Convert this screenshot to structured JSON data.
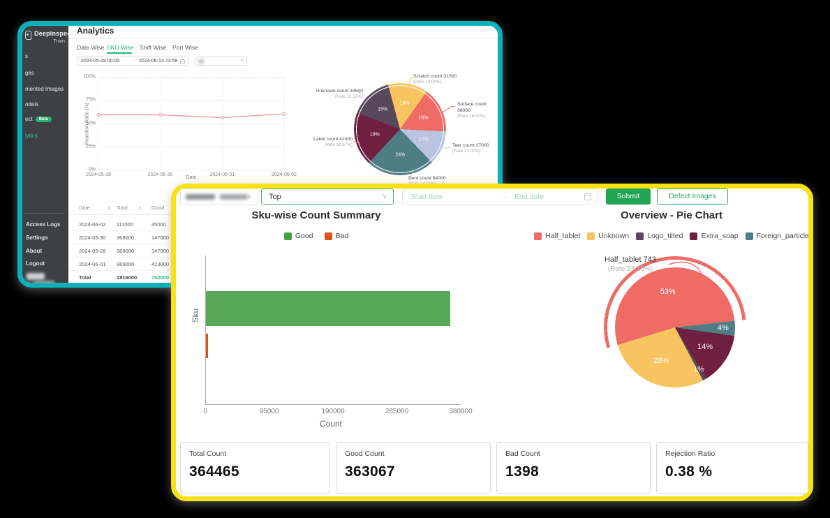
{
  "back_window": {
    "sidebar": {
      "logo_title": "DeepInspect",
      "logo_subtitle": "Train",
      "items": [
        {
          "label": "s"
        },
        {
          "label": "ges"
        },
        {
          "label": "mented Images"
        },
        {
          "label": "odels"
        },
        {
          "label": "ect",
          "badge": "Beta"
        },
        {
          "label": "lytics"
        }
      ],
      "footer_items": [
        "Access Logs",
        "Settings",
        "About",
        "Logout"
      ]
    },
    "title": "Analytics",
    "tabs": [
      {
        "label": "Date Wise"
      },
      {
        "label": "SKU Wise"
      },
      {
        "label": "Shift Wise"
      },
      {
        "label": "Port Wise"
      }
    ],
    "filters": {
      "date_start": "2024-05-28 00:00",
      "date_separator": "--",
      "date_end": "2024-06-13 23:59"
    },
    "table": {
      "columns": [
        "Date",
        "Total",
        "Good"
      ],
      "rows": [
        [
          "2024-06-02",
          "111000",
          "45000"
        ],
        [
          "2024-05-30",
          "368000",
          "147000"
        ],
        [
          "2024-05-28",
          "368000",
          "147000"
        ],
        [
          "2024-06-01",
          "969000",
          "423000"
        ]
      ],
      "total_row": [
        "Total",
        "1816000",
        "762000"
      ]
    }
  },
  "front_window": {
    "toolbar": {
      "sku_select_value": "Top",
      "start_date_placeholder": "Start date",
      "date_separator": "→",
      "end_date_placeholder": "End date",
      "submit_label": "Submit",
      "defect_images_label": "Defect Images"
    },
    "cards": [
      {
        "label": "Total Count",
        "value": "364465"
      },
      {
        "label": "Good Count",
        "value": "363067"
      },
      {
        "label": "Bad Count",
        "value": "1398"
      },
      {
        "label": "Rejection Ratio",
        "value": "0.38 %"
      }
    ]
  },
  "chart_data": [
    {
      "type": "line",
      "x": [
        "2024-05-28",
        "2024-05-30",
        "2024-06-01",
        "2024-06-02"
      ],
      "series": [
        {
          "name": "Rejection Ratio",
          "values": [
            59,
            59,
            56,
            60
          ]
        }
      ],
      "xlabel": "Date",
      "ylabel": "Rejection Ratio (%)",
      "ylim": [
        0,
        100
      ],
      "ytick_labels": [
        "0%",
        "25%",
        "50%",
        "75%",
        "100%"
      ],
      "line_color": "#f08d8d",
      "grid": true
    },
    {
      "type": "pie",
      "start_angle": -15,
      "slices": [
        {
          "name": "Scratch",
          "count": 31500,
          "pct": 14,
          "color": "#f8c45f",
          "pct_label": "14%",
          "label": "Scratch count 31500",
          "rate_label": "(Rate 14.00%)"
        },
        {
          "name": "Surface",
          "count": 36000,
          "pct": 16,
          "color": "#ee6b66",
          "pct_label": "16%",
          "label": "Surface count 36000",
          "rate_label": "(Rate 16.00%)"
        },
        {
          "name": "Teer",
          "count": 27000,
          "pct": 12,
          "color": "#b9c4e0",
          "pct_label": "12%",
          "label": "Teer count 27000",
          "rate_label": "(Rate 12.00%)"
        },
        {
          "name": "Dent",
          "count": 54000,
          "pct": 24,
          "color": "#4e7d85",
          "pct_label": "24%",
          "label": "Dent count 54000",
          "rate_label": "(Rate 24.00%)"
        },
        {
          "name": "Label",
          "count": 42000,
          "pct": 19,
          "color": "#6f1f40",
          "pct_label": "19%",
          "label": "Label count 42000",
          "rate_label": "(Rate 18.67%)"
        },
        {
          "name": "Unknown",
          "count": 34500,
          "pct": 15,
          "color": "#57485a",
          "pct_label": "15%",
          "label": "Unknown count 34500",
          "rate_label": "(Rate 15.33%)"
        }
      ]
    },
    {
      "type": "bar",
      "title": "Sku-wise Count Summary",
      "orientation": "horizontal",
      "categories": [
        "Sku"
      ],
      "series": [
        {
          "name": "Good",
          "values": [
            363067
          ],
          "color": "#57a857"
        },
        {
          "name": "Bad",
          "values": [
            1398
          ],
          "color": "#e2521d"
        }
      ],
      "legend": [
        {
          "label": "Good",
          "color": "#43a047"
        },
        {
          "label": "Bad",
          "color": "#e2521d"
        }
      ],
      "xlabel": "Count",
      "ylabel": "Sku",
      "xlim": [
        0,
        380000
      ],
      "xtick_labels": [
        "0",
        "95000",
        "190000",
        "285000",
        "380000"
      ]
    },
    {
      "type": "pie",
      "title": "Overview - Pie Chart",
      "start_angle": -107,
      "slices": [
        {
          "name": "Half_tablet",
          "pct": 53,
          "color": "#ee6b66",
          "pct_label": "53%",
          "count": 743,
          "callout_label": "Half_tablet 743",
          "callout_rate": "(Rate 53.15%)",
          "selected": true
        },
        {
          "name": "Foreign_particle",
          "pct": 4,
          "color": "#4e7d85",
          "pct_label": "4%"
        },
        {
          "name": "Extra_soap",
          "pct": 14,
          "color": "#6f1f40",
          "pct_label": "14%"
        },
        {
          "name": "Logo_tilted",
          "pct": 1,
          "color": "#57485a",
          "pct_label": "1%"
        },
        {
          "name": "Unknown",
          "pct": 28,
          "color": "#f8c45f",
          "pct_label": "28%"
        }
      ],
      "legend": [
        {
          "label": "Half_tablet",
          "color": "#ee6b66"
        },
        {
          "label": "Unknown",
          "color": "#f8c45f"
        },
        {
          "label": "Logo_tilted",
          "color": "#57485a"
        },
        {
          "label": "Extra_soap",
          "color": "#6f1f40"
        },
        {
          "label": "Foreign_particle",
          "color": "#4e7d85"
        }
      ]
    }
  ]
}
